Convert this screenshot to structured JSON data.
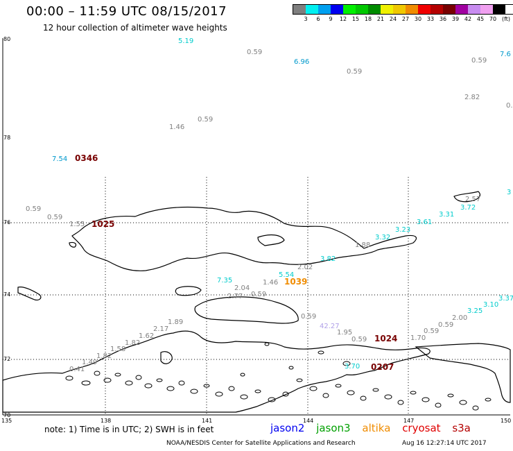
{
  "header": {
    "title": "00:00 – 11:59 UTC 08/15/2017",
    "subtitle": "12 hour collection of altimeter wave heights"
  },
  "legend": {
    "unit": "(ft)",
    "items": [
      {
        "label": "3",
        "color": "#7f7f7f"
      },
      {
        "label": "6",
        "color": "#00f0f0"
      },
      {
        "label": "9",
        "color": "#00a0f0"
      },
      {
        "label": "12",
        "color": "#0000f0"
      },
      {
        "label": "15",
        "color": "#00f000"
      },
      {
        "label": "18",
        "color": "#00c800"
      },
      {
        "label": "21",
        "color": "#008c00"
      },
      {
        "label": "24",
        "color": "#f0f000"
      },
      {
        "label": "27",
        "color": "#f0c800"
      },
      {
        "label": "30",
        "color": "#f08c00"
      },
      {
        "label": "33",
        "color": "#f00000"
      },
      {
        "label": "36",
        "color": "#b40000"
      },
      {
        "label": "39",
        "color": "#780000"
      },
      {
        "label": "42",
        "color": "#a000a0"
      },
      {
        "label": "45",
        "color": "#c88cf0"
      },
      {
        "label": "70",
        "color": "#f0a0f0"
      },
      {
        "label": "",
        "color": "#000000"
      }
    ]
  },
  "axes": {
    "lat_labels": [
      "80",
      "78",
      "76",
      "74",
      "72",
      "70"
    ],
    "lon_labels": [
      "135",
      "138",
      "141",
      "144",
      "147",
      "150"
    ]
  },
  "colors": {
    "gray": "#808080",
    "cyan": "#00cccc",
    "teal": "#0099cc",
    "lavender": "#b0a0e8",
    "orange": "#f08c00",
    "darkred": "#780000"
  },
  "observations": [
    {
      "text": "5.19",
      "color": "cyan"
    },
    {
      "text": "0.59",
      "color": "gray"
    },
    {
      "text": "6.96",
      "color": "teal"
    },
    {
      "text": "0.59",
      "color": "gray"
    },
    {
      "text": "0.59",
      "color": "gray"
    },
    {
      "text": "7.6",
      "color": "teal"
    },
    {
      "text": "2.82",
      "color": "gray"
    },
    {
      "text": "0.",
      "color": "gray"
    },
    {
      "text": "0.59",
      "color": "gray"
    },
    {
      "text": "1.46",
      "color": "gray"
    },
    {
      "text": "7.54",
      "color": "teal"
    },
    {
      "text": "3",
      "color": "cyan"
    },
    {
      "text": "2.57",
      "color": "gray"
    },
    {
      "text": "3.72",
      "color": "cyan"
    },
    {
      "text": "3.31",
      "color": "cyan"
    },
    {
      "text": "3.61",
      "color": "cyan"
    },
    {
      "text": "3.23",
      "color": "cyan"
    },
    {
      "text": "3.32",
      "color": "cyan"
    },
    {
      "text": "1.88",
      "color": "gray"
    },
    {
      "text": "0.59",
      "color": "gray"
    },
    {
      "text": "0.59",
      "color": "gray"
    },
    {
      "text": "1.55",
      "color": "gray"
    },
    {
      "text": "3.82",
      "color": "cyan"
    },
    {
      "text": "2.02",
      "color": "gray"
    },
    {
      "text": "5.54",
      "color": "cyan"
    },
    {
      "text": "1.46",
      "color": "gray"
    },
    {
      "text": "7.35",
      "color": "cyan"
    },
    {
      "text": "2.04",
      "color": "gray"
    },
    {
      "text": "2.77",
      "color": "gray"
    },
    {
      "text": "0.59",
      "color": "gray"
    },
    {
      "text": "3.37",
      "color": "cyan"
    },
    {
      "text": "3.10",
      "color": "cyan"
    },
    {
      "text": "3.25",
      "color": "cyan"
    },
    {
      "text": "2.00",
      "color": "gray"
    },
    {
      "text": "0.59",
      "color": "gray"
    },
    {
      "text": "0.59",
      "color": "gray"
    },
    {
      "text": "42.27",
      "color": "lavender"
    },
    {
      "text": "1.95",
      "color": "gray"
    },
    {
      "text": "0.59",
      "color": "gray"
    },
    {
      "text": "1.70",
      "color": "gray"
    },
    {
      "text": "0.59",
      "color": "gray"
    },
    {
      "text": "1.89",
      "color": "gray"
    },
    {
      "text": "2.17",
      "color": "gray"
    },
    {
      "text": "1.62",
      "color": "gray"
    },
    {
      "text": "1.82",
      "color": "gray"
    },
    {
      "text": "1.58",
      "color": "gray"
    },
    {
      "text": "1.82",
      "color": "gray"
    },
    {
      "text": "1.49",
      "color": "gray"
    },
    {
      "text": "0.41",
      "color": "gray"
    },
    {
      "text": "3.70",
      "color": "cyan"
    }
  ],
  "times": [
    {
      "text": "0346",
      "color": "darkred"
    },
    {
      "text": "1025",
      "color": "darkred"
    },
    {
      "text": "1039",
      "color": "orange"
    },
    {
      "text": "1024",
      "color": "darkred"
    },
    {
      "text": "0207",
      "color": "darkred"
    }
  ],
  "footer": {
    "note": "note:  1) Time is in UTC;  2) SWH is in feet",
    "satellites": [
      {
        "name": "jason2",
        "color": "#0000f0"
      },
      {
        "name": "jason3",
        "color": "#00a000"
      },
      {
        "name": "altika",
        "color": "#f08c00"
      },
      {
        "name": "cryosat",
        "color": "#e00000"
      },
      {
        "name": "s3a",
        "color": "#b40000"
      }
    ],
    "credit": "NOAA/NESDIS Center for Satellite Applications and Research",
    "timestamp": "Aug 16 12:27:14 UTC 2017"
  }
}
